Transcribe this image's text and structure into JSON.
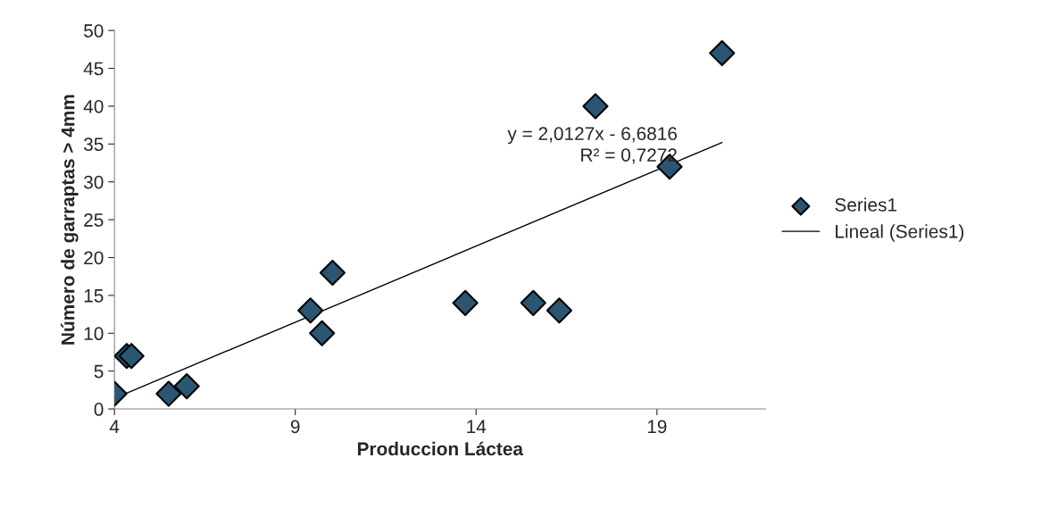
{
  "chart_data": {
    "type": "scatter",
    "xlabel": "Produccion Láctea",
    "ylabel": "Número de garraptas > 4mm",
    "xlim": [
      4,
      22
    ],
    "xticks": [
      4,
      9,
      14,
      19
    ],
    "ylim": [
      0,
      50
    ],
    "yticks": [
      0,
      5,
      10,
      15,
      20,
      25,
      30,
      35,
      40,
      45,
      50
    ],
    "grid": false,
    "legend": "right",
    "series": [
      {
        "name": "Series1",
        "marker": "diamond",
        "color": "#2a5673",
        "x": [
          4,
          4.34,
          4.47,
          5.5,
          6.0,
          9.42,
          9.74,
          10.03,
          13.7,
          15.58,
          16.3,
          17.3,
          19.35,
          20.8
        ],
        "values": [
          2,
          7,
          7,
          2,
          3,
          13,
          10,
          18,
          14,
          14,
          13,
          40,
          32,
          47
        ]
      },
      {
        "name": "Lineal (Series1)",
        "type": "line",
        "marker": "none",
        "color": "#000000",
        "x": [
          4,
          20.8
        ],
        "values": [
          1.4,
          35.2
        ]
      }
    ],
    "annotations": [
      "y = 2,0127x - 6,6816\nR² = 0,7272"
    ]
  }
}
